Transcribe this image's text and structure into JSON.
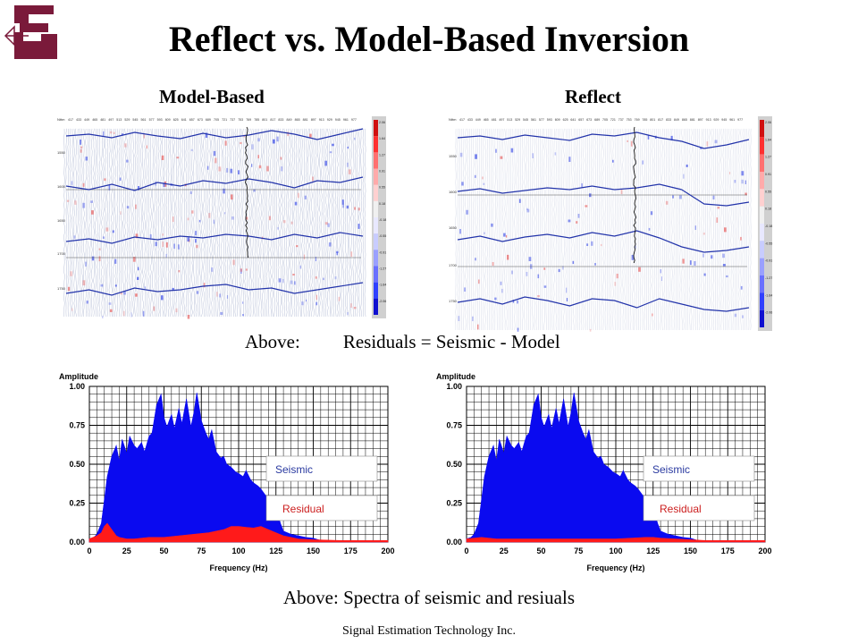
{
  "title": "Reflect vs. Model-Based Inversion",
  "panels": {
    "left_label": "Model-Based",
    "right_label": "Reflect"
  },
  "seismic": {
    "colorbar_ticks": [
      "2.06",
      "1.64",
      "1.27",
      "0.91",
      "0.55",
      "0.18",
      "-0.18",
      "-0.55",
      "-0.91",
      "-1.27",
      "-1.64",
      "-2.06"
    ],
    "depth_ticks": [
      "1550",
      "1600",
      "1650",
      "1700",
      "1750"
    ],
    "cdp_label": "Nttm",
    "cdp_ticks": [
      "417",
      "433",
      "449",
      "465",
      "481",
      "497",
      "513",
      "529",
      "545",
      "561",
      "577",
      "593",
      "609",
      "625",
      "641",
      "657",
      "673",
      "689",
      "705",
      "721",
      "737",
      "753",
      "769",
      "785",
      "801",
      "817",
      "833",
      "849",
      "865",
      "881",
      "897",
      "913",
      "929",
      "945",
      "961",
      "977"
    ]
  },
  "caption_top": {
    "prefix": "Above:",
    "text": "Residuals  =  Seismic - Model"
  },
  "chart_data": [
    {
      "type": "area",
      "title": "",
      "ylabel": "Amplitude",
      "xlabel": "Frequency (Hz)",
      "xlim": [
        0,
        200
      ],
      "ylim": [
        0,
        1.0
      ],
      "x_ticks": [
        "0",
        "25",
        "50",
        "75",
        "100",
        "125",
        "150",
        "175",
        "200"
      ],
      "y_ticks": [
        "0.00",
        "0.25",
        "0.50",
        "0.75",
        "1.00"
      ],
      "grid": true,
      "legend_position": "right",
      "series": [
        {
          "name": "Seismic",
          "color": "#0a0af0",
          "x": [
            0,
            3,
            5,
            8,
            12,
            15,
            18,
            20,
            22,
            25,
            27,
            30,
            32,
            35,
            37,
            40,
            42,
            45,
            48,
            50,
            52,
            55,
            57,
            60,
            62,
            65,
            68,
            70,
            72,
            75,
            78,
            80,
            82,
            85,
            88,
            90,
            92,
            95,
            98,
            100,
            103,
            105,
            108,
            110,
            113,
            115,
            118,
            120,
            123,
            125,
            128,
            130,
            135,
            140,
            145,
            150,
            155,
            160,
            170,
            180,
            190,
            200
          ],
          "values": [
            0.02,
            0.03,
            0.05,
            0.12,
            0.42,
            0.55,
            0.62,
            0.52,
            0.66,
            0.57,
            0.68,
            0.62,
            0.6,
            0.64,
            0.58,
            0.68,
            0.7,
            0.88,
            0.95,
            0.8,
            0.74,
            0.82,
            0.73,
            0.86,
            0.76,
            0.92,
            0.74,
            0.83,
            0.96,
            0.78,
            0.7,
            0.66,
            0.72,
            0.58,
            0.54,
            0.55,
            0.5,
            0.48,
            0.45,
            0.44,
            0.42,
            0.46,
            0.4,
            0.38,
            0.36,
            0.34,
            0.3,
            0.28,
            0.25,
            0.22,
            0.12,
            0.07,
            0.05,
            0.04,
            0.03,
            0.025,
            0.01,
            0.005,
            0.0,
            0.0,
            0.0,
            0.0
          ]
        },
        {
          "name": "Residual",
          "color": "#ff1a1a",
          "x": [
            0,
            5,
            8,
            10,
            12,
            15,
            18,
            20,
            25,
            30,
            40,
            50,
            60,
            70,
            80,
            90,
            95,
            100,
            105,
            110,
            115,
            120,
            125,
            130,
            135,
            140,
            150,
            160,
            170,
            180,
            190,
            200
          ],
          "values": [
            0.02,
            0.04,
            0.06,
            0.1,
            0.12,
            0.08,
            0.04,
            0.03,
            0.02,
            0.02,
            0.03,
            0.03,
            0.04,
            0.05,
            0.06,
            0.08,
            0.1,
            0.1,
            0.095,
            0.09,
            0.1,
            0.08,
            0.06,
            0.04,
            0.03,
            0.02,
            0.015,
            0.012,
            0.01,
            0.01,
            0.01,
            0.01
          ]
        }
      ]
    },
    {
      "type": "area",
      "title": "",
      "ylabel": "Amplitude",
      "xlabel": "Frequency (Hz)",
      "xlim": [
        0,
        200
      ],
      "ylim": [
        0,
        1.0
      ],
      "x_ticks": [
        "0",
        "25",
        "50",
        "75",
        "100",
        "125",
        "150",
        "175",
        "200"
      ],
      "y_ticks": [
        "0.00",
        "0.25",
        "0.50",
        "0.75",
        "1.00"
      ],
      "grid": true,
      "legend_position": "right",
      "series": [
        {
          "name": "Seismic",
          "color": "#0a0af0",
          "x": [
            0,
            3,
            5,
            8,
            12,
            15,
            18,
            20,
            22,
            25,
            27,
            30,
            32,
            35,
            37,
            40,
            42,
            45,
            48,
            50,
            52,
            55,
            57,
            60,
            62,
            65,
            68,
            70,
            72,
            75,
            78,
            80,
            82,
            85,
            88,
            90,
            92,
            95,
            98,
            100,
            103,
            105,
            108,
            110,
            113,
            115,
            118,
            120,
            123,
            125,
            128,
            130,
            135,
            140,
            145,
            150,
            155,
            160,
            170,
            180,
            190,
            200
          ],
          "values": [
            0.02,
            0.03,
            0.05,
            0.12,
            0.42,
            0.55,
            0.62,
            0.52,
            0.66,
            0.57,
            0.68,
            0.62,
            0.6,
            0.64,
            0.58,
            0.68,
            0.7,
            0.88,
            0.95,
            0.8,
            0.74,
            0.82,
            0.73,
            0.86,
            0.76,
            0.92,
            0.74,
            0.83,
            0.96,
            0.78,
            0.7,
            0.66,
            0.72,
            0.58,
            0.54,
            0.55,
            0.5,
            0.48,
            0.45,
            0.44,
            0.42,
            0.46,
            0.4,
            0.38,
            0.36,
            0.34,
            0.3,
            0.28,
            0.25,
            0.22,
            0.12,
            0.07,
            0.05,
            0.04,
            0.03,
            0.025,
            0.01,
            0.005,
            0.0,
            0.0,
            0.0,
            0.0
          ]
        },
        {
          "name": "Residual",
          "color": "#ff1a1a",
          "x": [
            0,
            5,
            10,
            15,
            20,
            30,
            40,
            50,
            60,
            70,
            80,
            90,
            100,
            110,
            120,
            125,
            130,
            140,
            150,
            160,
            170,
            180,
            190,
            200
          ],
          "values": [
            0.02,
            0.025,
            0.03,
            0.025,
            0.02,
            0.02,
            0.02,
            0.02,
            0.02,
            0.02,
            0.02,
            0.02,
            0.02,
            0.025,
            0.03,
            0.03,
            0.025,
            0.02,
            0.015,
            0.01,
            0.01,
            0.01,
            0.01,
            0.01
          ]
        }
      ]
    }
  ],
  "caption_bottom": "Above: Spectra of seismic and resiuals",
  "footer": "Signal Estimation Technology Inc."
}
